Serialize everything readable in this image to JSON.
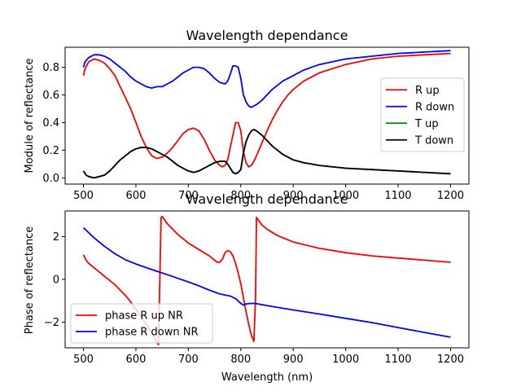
{
  "chart_data": [
    {
      "type": "line",
      "title": "Wavelength dependance",
      "xlabel": "",
      "ylabel": "Module of reflectance",
      "xlim": [
        465,
        1235
      ],
      "ylim": [
        -0.045,
        0.945
      ],
      "xticks": [
        500,
        600,
        700,
        800,
        900,
        1000,
        1100,
        1200
      ],
      "yticks": [
        0.0,
        0.2,
        0.4,
        0.6,
        0.8
      ],
      "ytick_labels": [
        "0.0",
        "0.2",
        "0.4",
        "0.6",
        "0.8"
      ],
      "grid": false,
      "legend_position": "center-right",
      "series": [
        {
          "name": "R up",
          "color": "#ff0000",
          "x": [
            500,
            503,
            510,
            520,
            530,
            540,
            550,
            560,
            570,
            580,
            590,
            600,
            610,
            620,
            630,
            640,
            650,
            660,
            670,
            680,
            690,
            700,
            710,
            720,
            730,
            740,
            750,
            760,
            765,
            770,
            775,
            780,
            785,
            790,
            795,
            800,
            805,
            810,
            815,
            820,
            825,
            830,
            840,
            850,
            860,
            870,
            880,
            890,
            900,
            920,
            950,
            1000,
            1050,
            1100,
            1150,
            1200
          ],
          "y": [
            0.74,
            0.79,
            0.84,
            0.86,
            0.85,
            0.83,
            0.79,
            0.74,
            0.66,
            0.58,
            0.5,
            0.4,
            0.3,
            0.22,
            0.16,
            0.14,
            0.15,
            0.18,
            0.22,
            0.27,
            0.32,
            0.35,
            0.36,
            0.34,
            0.28,
            0.2,
            0.13,
            0.09,
            0.08,
            0.09,
            0.13,
            0.22,
            0.31,
            0.4,
            0.4,
            0.34,
            0.19,
            0.11,
            0.08,
            0.09,
            0.12,
            0.16,
            0.25,
            0.34,
            0.42,
            0.49,
            0.55,
            0.6,
            0.64,
            0.7,
            0.76,
            0.82,
            0.86,
            0.88,
            0.89,
            0.9
          ]
        },
        {
          "name": "R down",
          "color": "#0000ff",
          "x": [
            500,
            503,
            510,
            520,
            530,
            540,
            550,
            560,
            570,
            580,
            590,
            600,
            610,
            620,
            630,
            640,
            650,
            660,
            670,
            680,
            690,
            700,
            710,
            720,
            730,
            740,
            750,
            760,
            770,
            775,
            780,
            785,
            790,
            795,
            800,
            805,
            810,
            815,
            820,
            825,
            830,
            840,
            850,
            860,
            870,
            880,
            890,
            900,
            920,
            950,
            1000,
            1050,
            1100,
            1150,
            1200
          ],
          "y": [
            0.8,
            0.84,
            0.87,
            0.89,
            0.89,
            0.88,
            0.86,
            0.83,
            0.8,
            0.77,
            0.73,
            0.7,
            0.68,
            0.66,
            0.65,
            0.66,
            0.66,
            0.68,
            0.7,
            0.73,
            0.76,
            0.78,
            0.8,
            0.8,
            0.79,
            0.76,
            0.72,
            0.69,
            0.68,
            0.7,
            0.75,
            0.81,
            0.81,
            0.8,
            0.72,
            0.6,
            0.55,
            0.52,
            0.51,
            0.52,
            0.53,
            0.56,
            0.6,
            0.64,
            0.67,
            0.7,
            0.72,
            0.74,
            0.78,
            0.82,
            0.86,
            0.88,
            0.9,
            0.91,
            0.92
          ]
        },
        {
          "name": "T up",
          "color": "#008000",
          "x": [
            500,
            505,
            510,
            520,
            530,
            540,
            550,
            560,
            570,
            580,
            590,
            600,
            610,
            620,
            630,
            640,
            650,
            660,
            670,
            680,
            690,
            700,
            710,
            720,
            730,
            740,
            750,
            760,
            770,
            775,
            780,
            785,
            790,
            795,
            800,
            805,
            810,
            815,
            820,
            825,
            830,
            840,
            850,
            860,
            870,
            880,
            890,
            900,
            920,
            950,
            1000,
            1050,
            1100,
            1150,
            1200
          ],
          "y": [
            0.05,
            0.02,
            0.01,
            0.0,
            0.01,
            0.02,
            0.05,
            0.09,
            0.13,
            0.16,
            0.19,
            0.21,
            0.22,
            0.22,
            0.21,
            0.19,
            0.17,
            0.15,
            0.12,
            0.09,
            0.07,
            0.05,
            0.04,
            0.05,
            0.07,
            0.09,
            0.11,
            0.12,
            0.12,
            0.1,
            0.07,
            0.04,
            0.03,
            0.04,
            0.06,
            0.18,
            0.26,
            0.31,
            0.34,
            0.35,
            0.34,
            0.31,
            0.27,
            0.23,
            0.2,
            0.17,
            0.15,
            0.13,
            0.11,
            0.09,
            0.07,
            0.06,
            0.05,
            0.04,
            0.03
          ]
        },
        {
          "name": "T down",
          "color": "#000000",
          "x": [
            500,
            505,
            510,
            520,
            530,
            540,
            550,
            560,
            570,
            580,
            590,
            600,
            610,
            620,
            630,
            640,
            650,
            660,
            670,
            680,
            690,
            700,
            710,
            720,
            730,
            740,
            750,
            760,
            770,
            775,
            780,
            785,
            790,
            795,
            800,
            805,
            810,
            815,
            820,
            825,
            830,
            840,
            850,
            860,
            870,
            880,
            890,
            900,
            920,
            950,
            1000,
            1050,
            1100,
            1150,
            1200
          ],
          "y": [
            0.05,
            0.02,
            0.01,
            0.0,
            0.01,
            0.02,
            0.05,
            0.09,
            0.13,
            0.16,
            0.19,
            0.21,
            0.22,
            0.22,
            0.21,
            0.19,
            0.17,
            0.15,
            0.12,
            0.09,
            0.07,
            0.05,
            0.04,
            0.05,
            0.07,
            0.09,
            0.11,
            0.12,
            0.12,
            0.1,
            0.07,
            0.04,
            0.03,
            0.04,
            0.06,
            0.18,
            0.26,
            0.31,
            0.34,
            0.35,
            0.34,
            0.31,
            0.27,
            0.23,
            0.2,
            0.17,
            0.15,
            0.13,
            0.11,
            0.09,
            0.07,
            0.06,
            0.05,
            0.04,
            0.03
          ]
        }
      ]
    },
    {
      "type": "line",
      "title": "Wavelength dependance",
      "xlabel": "Wavelength (nm)",
      "ylabel": "Phase of reflectance",
      "xlim": [
        465,
        1235
      ],
      "ylim": [
        -3.2,
        3.2
      ],
      "xticks": [
        500,
        600,
        700,
        800,
        900,
        1000,
        1100,
        1200
      ],
      "yticks": [
        -2,
        0,
        2
      ],
      "ytick_labels": [
        "−2",
        "0",
        "2"
      ],
      "grid": false,
      "legend_position": "lower-left",
      "series": [
        {
          "name": "phase R up NR",
          "color": "#ff0000",
          "x": [
            500,
            505,
            510,
            520,
            530,
            540,
            550,
            560,
            570,
            580,
            590,
            600,
            610,
            620,
            630,
            640,
            643,
            648,
            650,
            660,
            670,
            680,
            690,
            700,
            710,
            720,
            730,
            740,
            750,
            755,
            760,
            765,
            770,
            775,
            780,
            785,
            790,
            795,
            800,
            805,
            810,
            815,
            820,
            825,
            828,
            830,
            840,
            850,
            860,
            870,
            880,
            900,
            950,
            1000,
            1050,
            1100,
            1150,
            1200
          ],
          "y": [
            1.15,
            0.9,
            0.75,
            0.55,
            0.35,
            0.15,
            -0.05,
            -0.25,
            -0.5,
            -0.75,
            -1.05,
            -1.4,
            -1.75,
            -2.1,
            -2.5,
            -2.95,
            -3.05,
            2.9,
            2.95,
            2.6,
            2.35,
            2.1,
            1.9,
            1.7,
            1.55,
            1.4,
            1.25,
            1.1,
            0.9,
            0.8,
            0.8,
            0.95,
            1.25,
            1.35,
            1.3,
            1.1,
            0.75,
            0.3,
            -0.2,
            -0.85,
            -1.5,
            -2.1,
            -2.6,
            -2.9,
            -1.0,
            2.9,
            2.55,
            2.35,
            2.2,
            2.05,
            1.95,
            1.75,
            1.45,
            1.25,
            1.1,
            1.0,
            0.9,
            0.8
          ]
        },
        {
          "name": "phase R down NR",
          "color": "#0000ff",
          "x": [
            500,
            520,
            540,
            560,
            580,
            600,
            620,
            640,
            660,
            680,
            700,
            720,
            740,
            760,
            780,
            790,
            800,
            805,
            810,
            820,
            830,
            840,
            860,
            880,
            900,
            950,
            1000,
            1050,
            1100,
            1150,
            1200
          ],
          "y": [
            2.42,
            1.95,
            1.55,
            1.2,
            0.92,
            0.72,
            0.55,
            0.38,
            0.22,
            0.05,
            -0.12,
            -0.3,
            -0.5,
            -0.68,
            -0.78,
            -0.9,
            -1.12,
            -1.2,
            -1.15,
            -1.12,
            -1.13,
            -1.18,
            -1.27,
            -1.35,
            -1.43,
            -1.62,
            -1.82,
            -2.02,
            -2.25,
            -2.48,
            -2.7
          ]
        }
      ]
    }
  ]
}
